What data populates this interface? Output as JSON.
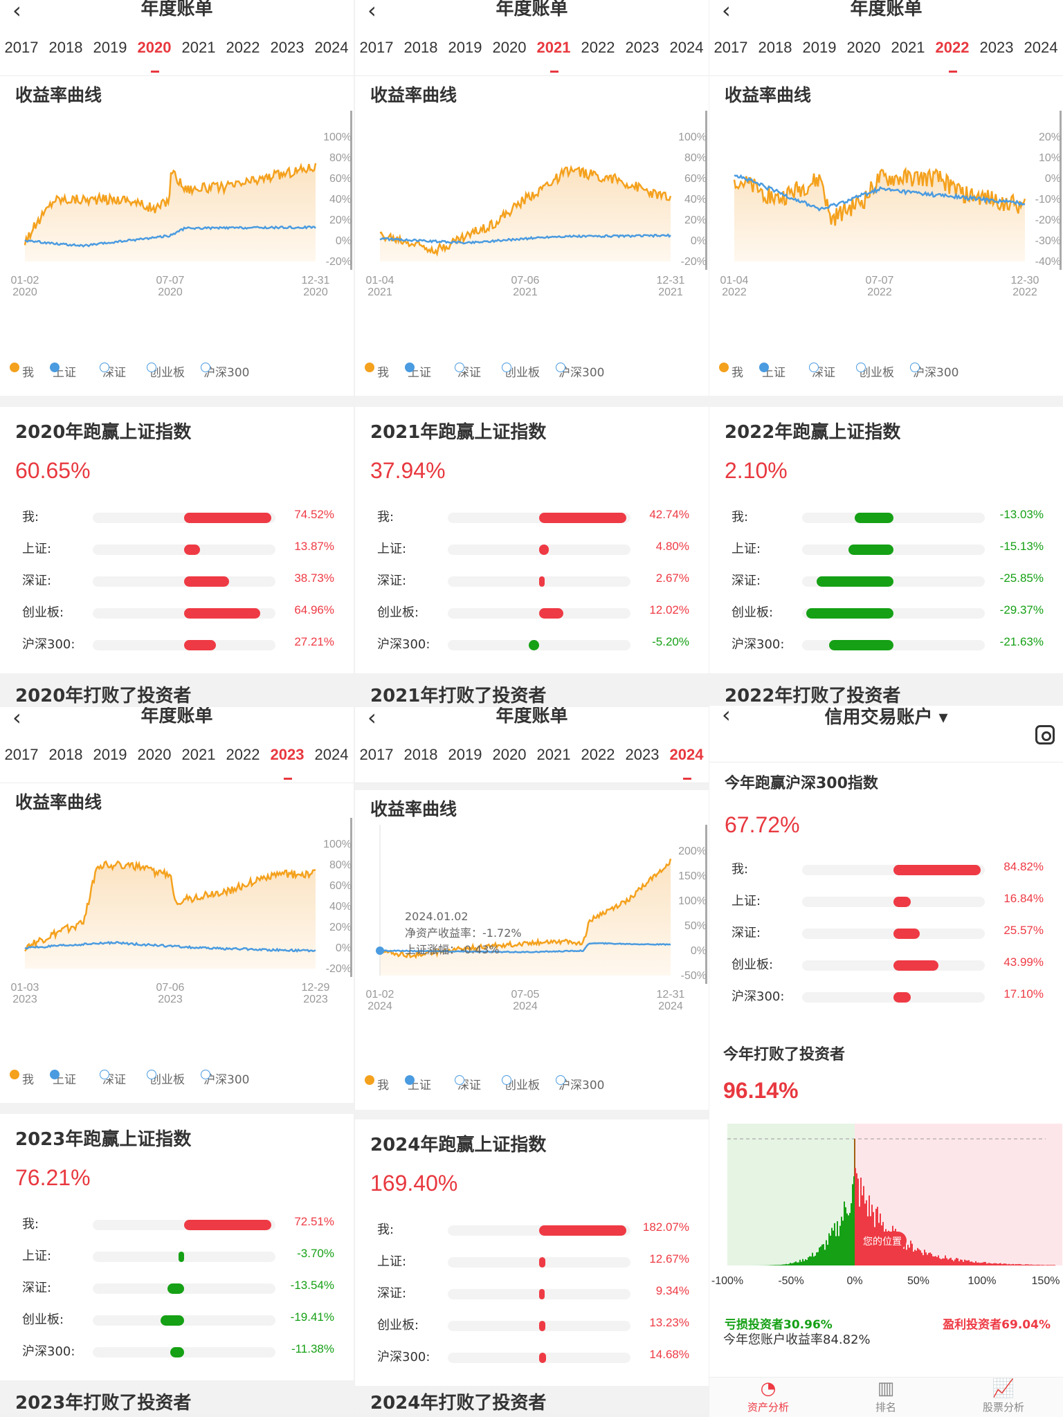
{
  "nav": {
    "title": "年度账单",
    "years": [
      "2017",
      "2018",
      "2019",
      "2020",
      "2021",
      "2022",
      "2023",
      "2024"
    ]
  },
  "panels": [
    {
      "selected_year": "2020",
      "curve_title": "收益率曲线",
      "x_ticks": [
        "01-02\n2020",
        "07-07\n2020",
        "12-31\n2020"
      ],
      "y_ticks": [
        "100%",
        "80%",
        "60%",
        "40%",
        "20%",
        "0%",
        "-20%"
      ],
      "beat_title": "2020年跑赢上证指数",
      "beat_pct": "60.65%",
      "rows": [
        [
          "我:",
          "74.52%",
          74.52
        ],
        [
          "上证:",
          "13.87%",
          13.87
        ],
        [
          "深证:",
          "38.73%",
          38.73
        ],
        [
          "创业板:",
          "64.96%",
          64.96
        ],
        [
          "沪深300:",
          "27.21%",
          27.21
        ]
      ],
      "beat_investors": "2020年打败了投资者"
    },
    {
      "selected_year": "2021",
      "curve_title": "收益率曲线",
      "x_ticks": [
        "01-04\n2021",
        "07-06\n2021",
        "12-31\n2021"
      ],
      "y_ticks": [
        "100%",
        "80%",
        "60%",
        "40%",
        "20%",
        "0%",
        "-20%"
      ],
      "beat_title": "2021年跑赢上证指数",
      "beat_pct": "37.94%",
      "rows": [
        [
          "我:",
          "42.74%",
          42.74
        ],
        [
          "上证:",
          "4.80%",
          4.8
        ],
        [
          "深证:",
          "2.67%",
          2.67
        ],
        [
          "创业板:",
          "12.02%",
          12.02
        ],
        [
          "沪深300:",
          "-5.20%",
          -5.2
        ]
      ],
      "beat_investors": "2021年打败了投资者"
    },
    {
      "selected_year": "2022",
      "curve_title": "收益率曲线",
      "x_ticks": [
        "01-04\n2022",
        "07-07\n2022",
        "12-30\n2022"
      ],
      "y_ticks": [
        "20%",
        "10%",
        "0%",
        "-10%",
        "-20%",
        "-30%",
        "-40%"
      ],
      "beat_title": "2022年跑赢上证指数",
      "beat_pct": "2.10%",
      "rows": [
        [
          "我:",
          "-13.03%",
          -13.03
        ],
        [
          "上证:",
          "-15.13%",
          -15.13
        ],
        [
          "深证:",
          "-25.85%",
          -25.85
        ],
        [
          "创业板:",
          "-29.37%",
          -29.37
        ],
        [
          "沪深300:",
          "-21.63%",
          -21.63
        ]
      ],
      "beat_investors": "2022年打败了投资者"
    },
    {
      "selected_year": "2023",
      "curve_title": "收益率曲线",
      "x_ticks": [
        "01-03\n2023",
        "07-06\n2023",
        "12-29\n2023"
      ],
      "y_ticks": [
        "100%",
        "80%",
        "60%",
        "40%",
        "20%",
        "0%",
        "-20%"
      ],
      "beat_title": "2023年跑赢上证指数",
      "beat_pct": "76.21%",
      "rows": [
        [
          "我:",
          "72.51%",
          72.51
        ],
        [
          "上证:",
          "-3.70%",
          -3.7
        ],
        [
          "深证:",
          "-13.54%",
          -13.54
        ],
        [
          "创业板:",
          "-19.41%",
          -19.41
        ],
        [
          "沪深300:",
          "-11.38%",
          -11.38
        ]
      ],
      "beat_investors": "2023年打败了投资者"
    },
    {
      "selected_year": "2024",
      "curve_title": "收益率曲线",
      "x_ticks": [
        "01-02\n2024",
        "07-05\n2024",
        "12-31\n2024"
      ],
      "y_ticks": [
        "200%",
        "150%",
        "100%",
        "50%",
        "0%",
        "-50%"
      ],
      "tooltip": [
        "2024.01.02",
        "净资产收益率：-1.72%",
        "上证涨幅：-0.43%"
      ],
      "beat_title": "2024年跑赢上证指数",
      "beat_pct": "169.40%",
      "rows": [
        [
          "我:",
          "182.07%",
          182.07
        ],
        [
          "上证:",
          "12.67%",
          12.67
        ],
        [
          "深证:",
          "9.34%",
          9.34
        ],
        [
          "创业板:",
          "13.23%",
          13.23
        ],
        [
          "沪深300:",
          "14.68%",
          14.68
        ]
      ],
      "beat_investors": "2024年打败了投资者"
    }
  ],
  "legend": {
    "me": "我",
    "sh": "上证",
    "sz": "深证",
    "cyb": "创业板",
    "hs300": "沪深300"
  },
  "credit": {
    "title": "信用交易账户",
    "beat_title": "今年跑赢沪深300指数",
    "beat_pct": "67.72%",
    "rows": [
      [
        "我:",
        "84.82%",
        84.82
      ],
      [
        "上证:",
        "16.84%",
        16.84
      ],
      [
        "深证:",
        "25.57%",
        25.57
      ],
      [
        "创业板:",
        "43.99%",
        43.99
      ],
      [
        "沪深300:",
        "17.10%",
        17.1
      ]
    ],
    "investors_title": "今年打败了投资者",
    "investors_pct": "96.14%",
    "dist_x_ticks": [
      "-100%",
      "-50%",
      "0%",
      "50%",
      "100%",
      "150%"
    ],
    "loss_label": "亏损投资者30.96%",
    "profit_label": "盈利投资者69.04%",
    "your_position": "您的位置",
    "account_return": "今年您账户收益率84.82%",
    "tabs": [
      "资产分析",
      "排名",
      "股票分析"
    ]
  },
  "colors": {
    "accent": "#e8383f",
    "me": "#f4a11d",
    "sh": "#4a9be0",
    "green": "#15a015",
    "red": "#ee3a44"
  }
}
